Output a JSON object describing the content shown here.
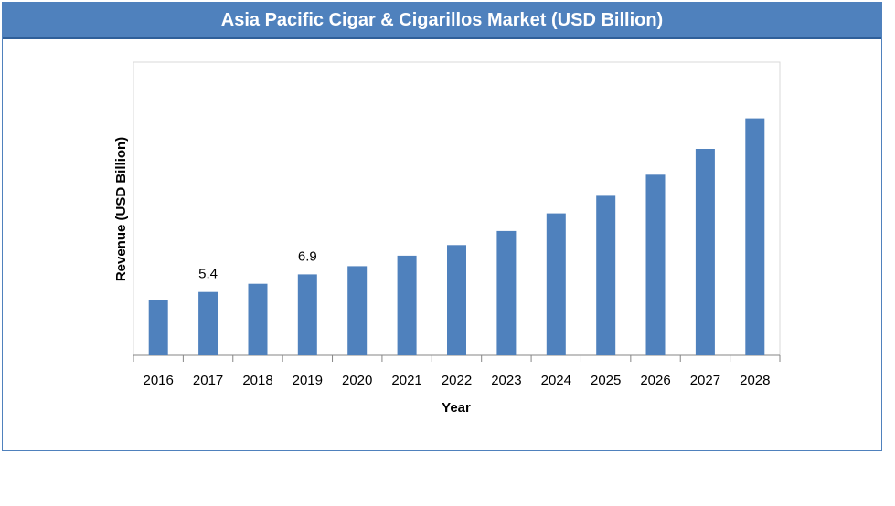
{
  "chart_data": {
    "type": "bar",
    "title": "Asia Pacific Cigar & Cigarillos Market (USD Billion)",
    "xlabel": "Year",
    "ylabel": "Revenue (USD Billion)",
    "categories": [
      "2016",
      "2017",
      "2018",
      "2019",
      "2020",
      "2021",
      "2022",
      "2023",
      "2024",
      "2025",
      "2026",
      "2027",
      "2028"
    ],
    "values": [
      4.7,
      5.4,
      6.1,
      6.9,
      7.6,
      8.5,
      9.4,
      10.6,
      12.1,
      13.6,
      15.4,
      17.6,
      20.2
    ],
    "data_labels": [
      {
        "category": "2017",
        "text": "5.4"
      },
      {
        "category": "2019",
        "text": "6.9"
      }
    ],
    "ylim": [
      0,
      25
    ],
    "bar_color": "#4f81bd",
    "grid": false
  }
}
